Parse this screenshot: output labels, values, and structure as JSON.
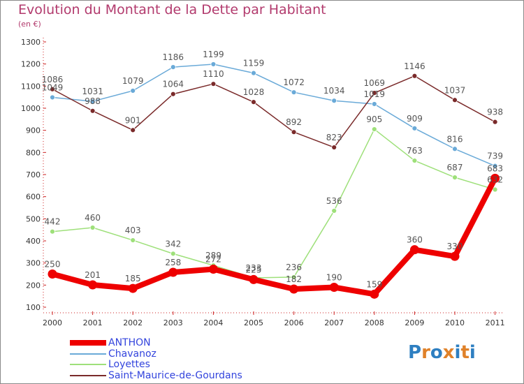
{
  "header": {
    "title": "Evolution du Montant de la Dette par Habitant",
    "subtitle": "(en €)"
  },
  "brand": {
    "text": "Proxiti",
    "letter_colors": [
      "#2e7fc1",
      "#e0822a",
      "#2e7fc1",
      "#e0822a",
      "#2e7fc1",
      "#e0822a",
      "#2e7fc1"
    ]
  },
  "chart_data": {
    "type": "line",
    "title": "Evolution du Montant de la Dette par Habitant",
    "subtitle": "(en €)",
    "xlabel": "",
    "ylabel": "",
    "x": [
      "2000",
      "2001",
      "2002",
      "2003",
      "2004",
      "2005",
      "2006",
      "2007",
      "2008",
      "2009",
      "2010",
      "2011"
    ],
    "ylim": [
      100,
      1300
    ],
    "yticks": [
      100,
      200,
      300,
      400,
      500,
      600,
      700,
      800,
      900,
      1000,
      1100,
      1200,
      1300
    ],
    "grid": false,
    "legend_position": "bottom-left",
    "series": [
      {
        "name": "ANTHON",
        "color": "#ee0000",
        "label_color": "#3344dd",
        "emphasis": true,
        "values": [
          250,
          201,
          185,
          258,
          272,
          225,
          182,
          190,
          159,
          360,
          330,
          683
        ]
      },
      {
        "name": "Chavanoz",
        "color": "#6aaad8",
        "label_color": "#3344dd",
        "emphasis": false,
        "values": [
          1049,
          1031,
          1079,
          1186,
          1199,
          1159,
          1072,
          1034,
          1019,
          909,
          816,
          739
        ]
      },
      {
        "name": "Loyettes",
        "color": "#9ee07a",
        "label_color": "#3344dd",
        "emphasis": false,
        "values": [
          442,
          460,
          403,
          342,
          289,
          233,
          236,
          536,
          905,
          763,
          687,
          632
        ]
      },
      {
        "name": "Saint-Maurice-de-Gourdans",
        "color": "#7a2a2a",
        "label_color": "#3344dd",
        "emphasis": false,
        "values": [
          1086,
          988,
          901,
          1064,
          1110,
          1028,
          892,
          823,
          1069,
          1146,
          1037,
          938
        ]
      }
    ]
  }
}
